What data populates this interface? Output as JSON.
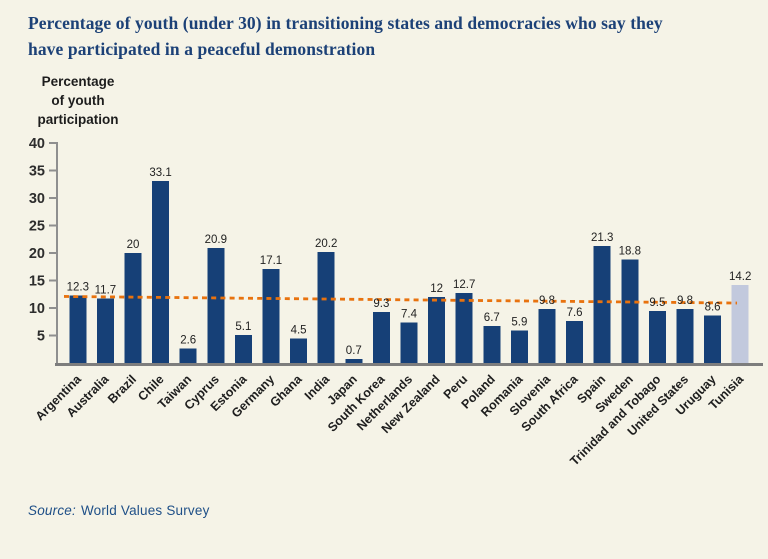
{
  "title": {
    "lines": [
      "Percentage of youth (under 30) in transitioning states and democracies who say they",
      "have participated in a peaceful demonstration"
    ]
  },
  "y_axis": {
    "label_lines": [
      "Percentage",
      "of youth",
      "participation"
    ],
    "ticks": [
      5,
      10,
      15,
      20,
      25,
      30,
      35,
      40
    ]
  },
  "chart_data": {
    "type": "bar",
    "categories": [
      "Argentina",
      "Australia",
      "Brazil",
      "Chile",
      "Taiwan",
      "Cyprus",
      "Estonia",
      "Germany",
      "Ghana",
      "India",
      "Japan",
      "South Korea",
      "Netherlands",
      "New Zealand",
      "Peru",
      "Poland",
      "Romania",
      "Slovenia",
      "South Africa",
      "Spain",
      "Sweden",
      "Trinidad and Tobago",
      "United States",
      "Uruguay",
      "Tunisia"
    ],
    "values": [
      12.3,
      11.7,
      20,
      33.1,
      2.6,
      20.9,
      5.1,
      17.1,
      4.5,
      20.2,
      0.7,
      9.3,
      7.4,
      12,
      12.7,
      6.7,
      5.9,
      9.8,
      7.6,
      21.3,
      18.8,
      9.5,
      9.8,
      8.6,
      14.2
    ],
    "title": "Percentage of youth (under 30) in transitioning states and democracies who say they have participated in a peaceful demonstration",
    "ylabel": "Percentage of youth participation",
    "ylim": [
      0,
      40
    ],
    "grid": false,
    "highlight_category": "Tunisia",
    "trend_line": {
      "style": "dashed",
      "start_value": 12.1,
      "end_value": 10.9
    }
  },
  "colors": {
    "background": "#f5f3e7",
    "bar": "#164077",
    "highlight_bar": "#c2c9dd",
    "trend_line": "#e8720e",
    "axis": "#8f8f8f",
    "baseline": "#7d7d7d",
    "tick_text": "#2d2d2d",
    "value_text": "#222222",
    "category_text": "#1e1e1e",
    "title_text": "#1c4177",
    "source_text": "#1e4f87"
  },
  "source": {
    "prefix": "Source:",
    "text": "World Values Survey"
  }
}
